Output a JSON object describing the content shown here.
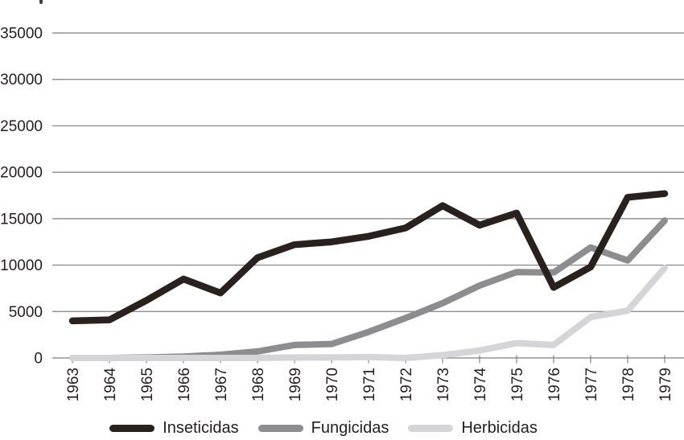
{
  "chart_data": {
    "type": "line",
    "title": "",
    "xlabel": "",
    "ylabel": "",
    "categories": [
      "1963",
      "1964",
      "1965",
      "1966",
      "1967",
      "1968",
      "1969",
      "1970",
      "1971",
      "1972",
      "1973",
      "1974",
      "1975",
      "1976",
      "1977",
      "1978",
      "1979"
    ],
    "series": [
      {
        "name": "Inseticidas",
        "color": "#29211e",
        "values": [
          4000,
          4100,
          6200,
          8500,
          7000,
          10800,
          12200,
          12500,
          13100,
          14000,
          16400,
          14300,
          15600,
          7600,
          9800,
          17300,
          17700
        ]
      },
      {
        "name": "Fungicidas",
        "color": "#8d8d90",
        "values": [
          0,
          0,
          50,
          150,
          350,
          700,
          1400,
          1500,
          2800,
          4300,
          5900,
          7800,
          9250,
          9200,
          11900,
          10500,
          14800
        ]
      },
      {
        "name": "Herbicidas",
        "color": "#d5d5d8",
        "values": [
          0,
          0,
          0,
          0,
          0,
          0,
          50,
          50,
          100,
          0,
          300,
          800,
          1600,
          1400,
          4400,
          5100,
          9700
        ]
      }
    ],
    "ylim": [
      0,
      35000
    ],
    "y_ticks": [
      0,
      5000,
      10000,
      15000,
      20000,
      25000,
      30000,
      35000
    ],
    "grid": "horizontal",
    "legend_position": "bottom",
    "colors": {
      "grid_line": "#7f7f7f",
      "tick_mark": "#6f6f6f",
      "axis_text": "#231f20",
      "background": "#ffffff"
    }
  }
}
